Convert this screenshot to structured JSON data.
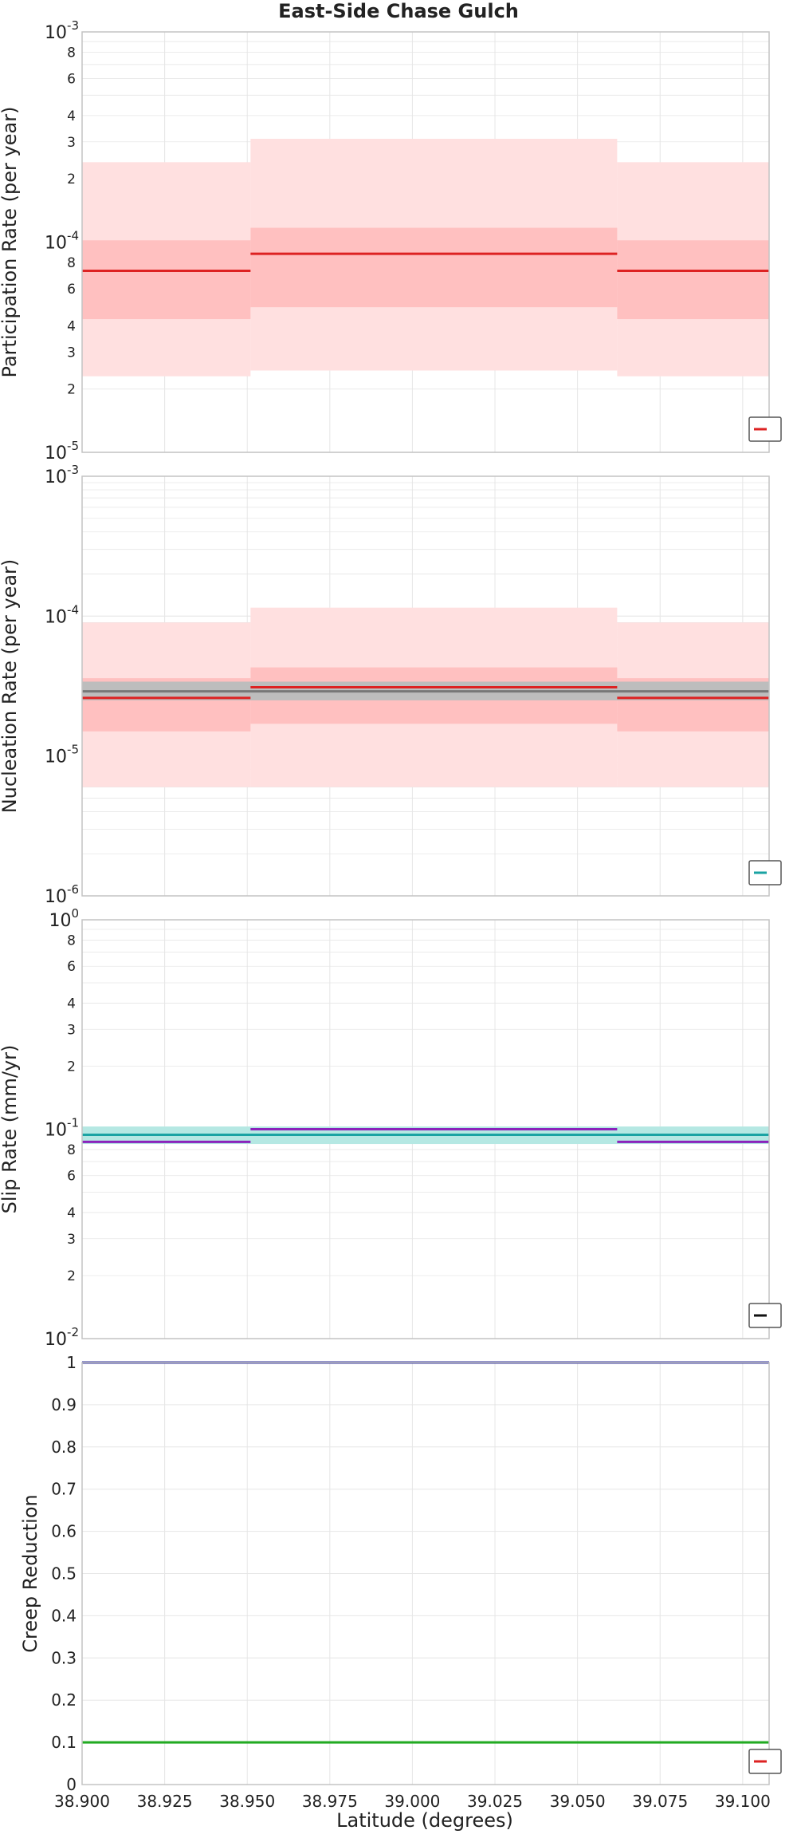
{
  "chart_title": "East-Side Chase Gulch",
  "x_axis": {
    "label": "Latitude (degrees)",
    "range": [
      38.9,
      39.108
    ],
    "ticks": [
      "38.900",
      "38.925",
      "38.950",
      "38.975",
      "39.000",
      "39.025",
      "39.050",
      "39.075",
      "39.100"
    ],
    "tick_values": [
      38.9,
      38.925,
      38.95,
      38.975,
      39.0,
      39.025,
      39.05,
      39.075,
      39.1
    ]
  },
  "grid": true,
  "colors": {
    "red_line": "#dd2222",
    "red_band_outer": "#ffe0e0",
    "red_band_inner": "#ffc0c0",
    "gray_band": "#bdbdbd",
    "gray_line": "#777777",
    "cyan_line": "#1aa3a3",
    "cyan_band": "#b5e8e3",
    "purple_line": "#8b22bb",
    "blue_line": "#2a2a9a",
    "green_line": "#22aa22",
    "grid": "#e6e6e6",
    "frame": "#c4c4c4"
  },
  "chart_data": [
    {
      "type": "line",
      "id": "participation",
      "ylabel": "Participation Rate (per year)",
      "yscale": "log",
      "ylim": [
        1e-05,
        0.001
      ],
      "legend": "bottom-right",
      "legend_color": "#dd2222",
      "bands": [
        {
          "color": "#ffe0e0",
          "segments": [
            {
              "x": [
                38.9,
                38.951
              ],
              "lo": 2.3e-05,
              "hi": 0.00024
            },
            {
              "x": [
                38.951,
                39.062
              ],
              "lo": 2.45e-05,
              "hi": 0.00031
            },
            {
              "x": [
                39.062,
                39.108
              ],
              "lo": 2.3e-05,
              "hi": 0.00024
            }
          ]
        },
        {
          "color": "#ffc0c0",
          "segments": [
            {
              "x": [
                38.9,
                38.951
              ],
              "lo": 4.3e-05,
              "hi": 0.000102
            },
            {
              "x": [
                38.951,
                39.062
              ],
              "lo": 4.9e-05,
              "hi": 0.000117
            },
            {
              "x": [
                39.062,
                39.108
              ],
              "lo": 4.3e-05,
              "hi": 0.000102
            }
          ]
        }
      ],
      "series": [
        {
          "color": "#dd2222",
          "segments": [
            {
              "x": [
                38.9,
                38.951
              ],
              "y": 7.3e-05
            },
            {
              "x": [
                38.951,
                39.062
              ],
              "y": 8.8e-05
            },
            {
              "x": [
                39.062,
                39.108
              ],
              "y": 7.3e-05
            }
          ]
        }
      ]
    },
    {
      "type": "line",
      "id": "nucleation",
      "ylabel": "Nucleation Rate (per year)",
      "yscale": "log",
      "ylim": [
        1e-06,
        0.001
      ],
      "legend": "bottom-right",
      "legend_color": "#1aa3a3",
      "bands": [
        {
          "color": "#ffe0e0",
          "segments": [
            {
              "x": [
                38.9,
                38.951
              ],
              "lo": 6e-06,
              "hi": 9e-05
            },
            {
              "x": [
                38.951,
                39.062
              ],
              "lo": 6e-06,
              "hi": 0.000115
            },
            {
              "x": [
                39.062,
                39.108
              ],
              "lo": 6e-06,
              "hi": 9e-05
            }
          ]
        },
        {
          "color": "#ffc0c0",
          "segments": [
            {
              "x": [
                38.9,
                38.951
              ],
              "lo": 1.5e-05,
              "hi": 3.6e-05
            },
            {
              "x": [
                38.951,
                39.062
              ],
              "lo": 1.7e-05,
              "hi": 4.3e-05
            },
            {
              "x": [
                39.062,
                39.108
              ],
              "lo": 1.5e-05,
              "hi": 3.6e-05
            }
          ]
        },
        {
          "color": "#bdbdbd",
          "segments": [
            {
              "x": [
                38.9,
                39.108
              ],
              "lo": 2.5e-05,
              "hi": 3.4e-05
            }
          ]
        }
      ],
      "series": [
        {
          "color": "#777777",
          "segments": [
            {
              "x": [
                38.9,
                39.108
              ],
              "y": 2.9e-05
            }
          ]
        },
        {
          "color": "#dd2222",
          "segments": [
            {
              "x": [
                38.9,
                38.951
              ],
              "y": 2.6e-05
            },
            {
              "x": [
                38.951,
                39.062
              ],
              "y": 3.1e-05
            },
            {
              "x": [
                39.062,
                39.108
              ],
              "y": 2.6e-05
            }
          ]
        }
      ]
    },
    {
      "type": "line",
      "id": "slip",
      "ylabel": "Slip Rate (mm/yr)",
      "yscale": "log",
      "ylim": [
        0.01,
        1
      ],
      "legend": "bottom-right",
      "legend_color": "#111111",
      "bands": [
        {
          "color": "#b5e8e3",
          "segments": [
            {
              "x": [
                38.9,
                39.108
              ],
              "lo": 0.085,
              "hi": 0.103
            }
          ]
        }
      ],
      "series": [
        {
          "color": "#1aa3a3",
          "segments": [
            {
              "x": [
                38.9,
                39.108
              ],
              "y": 0.094
            }
          ]
        },
        {
          "color": "#8b22bb",
          "segments": [
            {
              "x": [
                38.9,
                38.951
              ],
              "y": 0.087
            },
            {
              "x": [
                38.951,
                39.062
              ],
              "y": 0.1
            },
            {
              "x": [
                39.062,
                39.108
              ],
              "y": 0.087
            }
          ]
        }
      ]
    },
    {
      "type": "line",
      "id": "creep",
      "ylabel": "Creep Reduction",
      "yscale": "linear",
      "ylim": [
        0,
        1
      ],
      "yticks": [
        0,
        0.1,
        0.2,
        0.3,
        0.4,
        0.5,
        0.6,
        0.7,
        0.8,
        0.9,
        1
      ],
      "ytick_labels": [
        "0",
        "0.1",
        "0.2",
        "0.3",
        "0.4",
        "0.5",
        "0.6",
        "0.7",
        "0.8",
        "0.9",
        "1"
      ],
      "legend": "bottom-right",
      "legend_color": "#dd2222",
      "bands": [],
      "series": [
        {
          "color": "#2a2a9a",
          "segments": [
            {
              "x": [
                38.9,
                39.108
              ],
              "y": 1.0
            }
          ]
        },
        {
          "color": "#22aa22",
          "segments": [
            {
              "x": [
                38.9,
                39.108
              ],
              "y": 0.1
            }
          ]
        }
      ]
    }
  ]
}
